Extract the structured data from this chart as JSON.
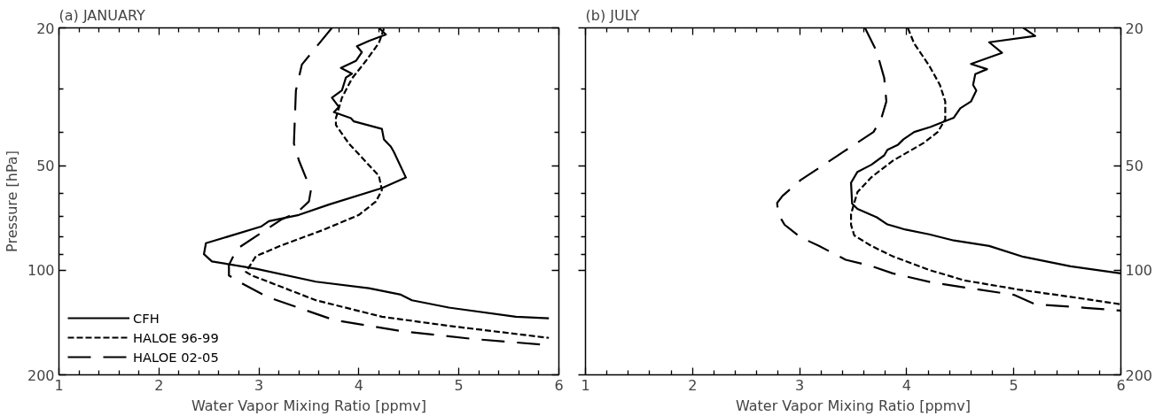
{
  "chart_data": [
    {
      "type": "line",
      "title": "(a) JANUARY",
      "xlabel": "Water Vapor Mixing Ratio [ppmv]",
      "ylabel": "Pressure [hPa]",
      "log": "y",
      "grid": false,
      "legend": "bottom left",
      "marker": "none",
      "xlim": [
        1,
        6
      ],
      "ylim": [
        200,
        20
      ],
      "xticks": [
        1,
        {
          "value": 1.2,
          "label": null
        },
        {
          "value": 1.4,
          "label": null
        },
        {
          "value": 1.6,
          "label": null
        },
        {
          "value": 1.8,
          "label": null
        },
        2,
        {
          "value": 2.2,
          "label": null
        },
        {
          "value": 2.4,
          "label": null
        },
        {
          "value": 2.6,
          "label": null
        },
        {
          "value": 2.8,
          "label": null
        },
        3,
        {
          "value": 3.2,
          "label": null
        },
        {
          "value": 3.4,
          "label": null
        },
        {
          "value": 3.6,
          "label": null
        },
        {
          "value": 3.8,
          "label": null
        },
        4,
        {
          "value": 4.2,
          "label": null
        },
        {
          "value": 4.4,
          "label": null
        },
        {
          "value": 4.6,
          "label": null
        },
        {
          "value": 4.8,
          "label": null
        },
        5,
        {
          "value": 5.2,
          "label": null
        },
        {
          "value": 5.4,
          "label": null
        },
        {
          "value": 5.6,
          "label": null
        },
        {
          "value": 5.8,
          "label": null
        },
        6
      ],
      "yticks": [
        20,
        {
          "value": 30,
          "label": null
        },
        {
          "value": 40,
          "label": null
        },
        50,
        {
          "value": 60,
          "label": null
        },
        {
          "value": 70,
          "label": null
        },
        {
          "value": 80,
          "label": null
        },
        {
          "value": 90,
          "label": null
        },
        100,
        200
      ],
      "series": [
        {
          "name": "CFH",
          "color": "#000000",
          "line_style": "solid",
          "x": [
            4.2,
            4.27,
            4.1,
            3.98,
            4.03,
            3.97,
            3.82,
            3.93,
            3.87,
            3.83,
            3.73,
            3.8,
            3.75,
            3.92,
            3.95,
            4.23,
            4.25,
            4.32,
            4.35,
            4.47,
            4.23,
            3.7,
            3.4,
            3.1,
            3.02,
            2.47,
            2.45,
            2.53,
            2.97,
            3.57,
            4.1,
            4.42,
            4.53,
            4.9,
            5.57,
            5.9
          ],
          "values": [
            20,
            20.9,
            21.8,
            22.6,
            23.5,
            24.9,
            26.1,
            27.1,
            27.8,
            30.3,
            31.8,
            33.8,
            35.0,
            36.4,
            37.2,
            39.1,
            41.9,
            44.0,
            45.6,
            54.0,
            57.9,
            64.6,
            69.2,
            72.1,
            74.8,
            83.5,
            89.8,
            94.2,
            98.9,
            107.8,
            112.6,
            117.5,
            121.9,
            128,
            136,
            137.5
          ]
        },
        {
          "name": "HALOE 96-99",
          "color": "#000000",
          "line_style": "dashed",
          "x": [
            4.25,
            4.2,
            4.07,
            3.93,
            3.83,
            3.77,
            3.77,
            3.9,
            4.2,
            4.23,
            4.17,
            4.0,
            3.63,
            3.23,
            2.97,
            2.87,
            2.93,
            3.57,
            4.23,
            4.9,
            5.9
          ],
          "values": [
            20.1,
            22.1,
            24.9,
            28.0,
            31.8,
            36.4,
            38.1,
            43.1,
            53.4,
            58.7,
            63.3,
            69.2,
            76.7,
            84.6,
            91,
            101,
            103.4,
            121.9,
            136,
            144.5,
            156.5
          ]
        },
        {
          "name": "HALOE 02-05",
          "color": "#000000",
          "line_style": "longdash",
          "x": [
            3.73,
            3.43,
            3.37,
            3.35,
            3.4,
            3.52,
            3.5,
            3.38,
            3.23,
            2.78,
            2.7,
            2.7,
            2.83,
            3.08,
            3.75,
            4.43,
            5.13,
            5.83
          ],
          "values": [
            20,
            25.5,
            30.3,
            43.1,
            48.2,
            58.7,
            63.3,
            68.2,
            71.2,
            86.7,
            96.5,
            103.4,
            109,
            119.1,
            139,
            149.7,
            157.5,
            163.6
          ]
        }
      ]
    },
    {
      "type": "line",
      "title": "(b) JULY",
      "xlabel": "Water Vapor Mixing Ratio [ppmv]",
      "log": "y",
      "grid": false,
      "legend": false,
      "marker": "none",
      "xlim": [
        1,
        6
      ],
      "ylim": [
        200,
        20
      ],
      "xticks": [
        1,
        {
          "value": 1.2,
          "label": null
        },
        {
          "value": 1.4,
          "label": null
        },
        {
          "value": 1.6,
          "label": null
        },
        {
          "value": 1.8,
          "label": null
        },
        2,
        {
          "value": 2.2,
          "label": null
        },
        {
          "value": 2.4,
          "label": null
        },
        {
          "value": 2.6,
          "label": null
        },
        {
          "value": 2.8,
          "label": null
        },
        3,
        {
          "value": 3.2,
          "label": null
        },
        {
          "value": 3.4,
          "label": null
        },
        {
          "value": 3.6,
          "label": null
        },
        {
          "value": 3.8,
          "label": null
        },
        4,
        {
          "value": 4.2,
          "label": null
        },
        {
          "value": 4.4,
          "label": null
        },
        {
          "value": 4.6,
          "label": null
        },
        {
          "value": 4.8,
          "label": null
        },
        5,
        {
          "value": 5.2,
          "label": null
        },
        {
          "value": 5.4,
          "label": null
        },
        {
          "value": 5.6,
          "label": null
        },
        {
          "value": 5.8,
          "label": null
        },
        6
      ],
      "yticks": [
        20,
        {
          "value": 30,
          "label": null
        },
        {
          "value": 40,
          "label": null
        },
        50,
        {
          "value": 60,
          "label": null
        },
        {
          "value": 70,
          "label": null
        },
        {
          "value": 80,
          "label": null
        },
        {
          "value": 90,
          "label": null
        },
        100,
        200
      ],
      "series": [
        {
          "color": "#000000",
          "line_style": "solid",
          "x": [
            5.09,
            5.2,
            4.77,
            4.89,
            4.6,
            4.75,
            4.64,
            4.62,
            4.65,
            4.6,
            4.5,
            4.44,
            4.22,
            4.07,
            3.97,
            3.92,
            3.82,
            3.79,
            3.67,
            3.54,
            3.48,
            3.49,
            3.54,
            3.72,
            3.82,
            3.99,
            4.21,
            4.44,
            4.77,
            5.09,
            5.53,
            6.0
          ],
          "values": [
            20,
            21.1,
            22.0,
            23.6,
            25.4,
            26.3,
            27.2,
            29.2,
            30.3,
            32.6,
            34.1,
            36.3,
            38.6,
            39.9,
            41.9,
            43.4,
            44.9,
            46.6,
            49.6,
            52.0,
            55.9,
            64.2,
            66.5,
            70.3,
            73.7,
            76.3,
            78.7,
            82.0,
            85.0,
            91.4,
            97.3,
            102
          ]
        },
        {
          "color": "#000000",
          "line_style": "dashed",
          "x": [
            4.01,
            4.07,
            4.21,
            4.31,
            4.36,
            4.36,
            4.29,
            4.16,
            3.87,
            3.67,
            3.54,
            3.51,
            3.48,
            3.48,
            3.51,
            3.67,
            3.87,
            4.21,
            4.54,
            5.04,
            5.53,
            6.0
          ],
          "values": [
            20,
            22.2,
            25.7,
            29.2,
            32.6,
            36.7,
            39.9,
            42.9,
            48.3,
            53.9,
            59.5,
            63.9,
            68.8,
            73.9,
            79.3,
            85.0,
            91.1,
            99.7,
            106.9,
            113.5,
            119.2,
            125.2
          ]
        },
        {
          "color": "#000000",
          "line_style": "longdash",
          "x": [
            3.61,
            3.72,
            3.79,
            3.81,
            3.76,
            3.69,
            3.41,
            3.01,
            2.84,
            2.79,
            2.8,
            2.86,
            3.01,
            3.18,
            3.43,
            3.66,
            3.87,
            4.24,
            5.0,
            5.2,
            5.67,
            6.0
          ],
          "values": [
            20,
            23.4,
            27.9,
            32.6,
            36.7,
            39.9,
            45.5,
            54.9,
            61.0,
            63.9,
            68.8,
            73.9,
            80.3,
            85.0,
            93.2,
            96.9,
            102.0,
            108.4,
            117.6,
            125.2,
            128.2,
            130.6
          ]
        }
      ]
    }
  ]
}
